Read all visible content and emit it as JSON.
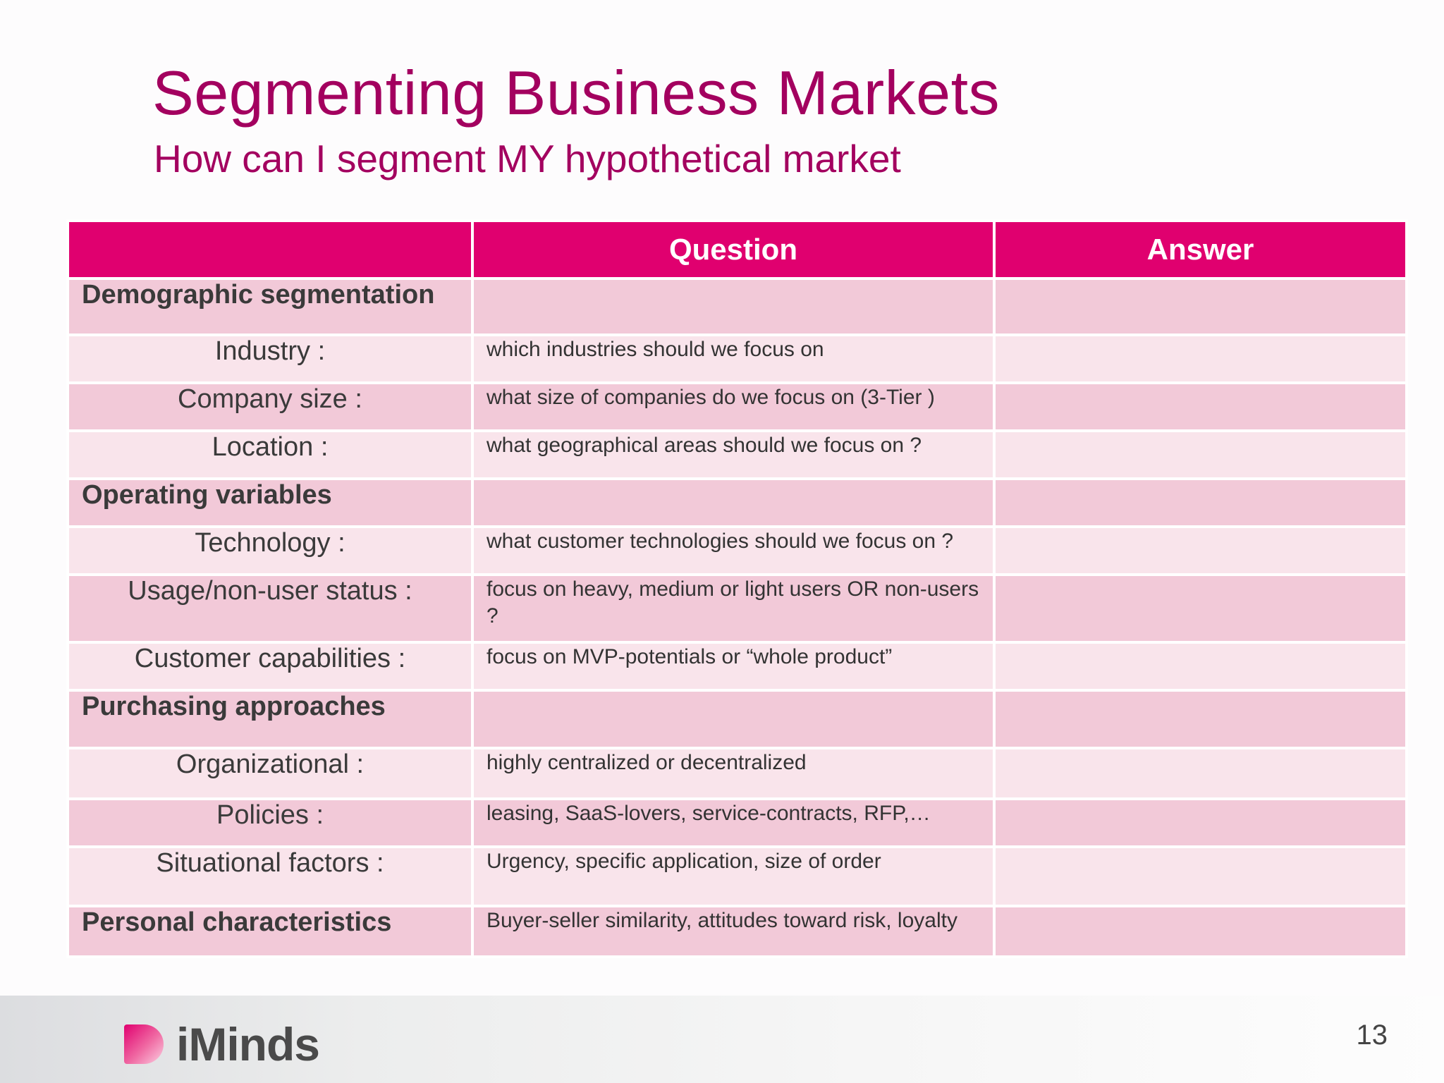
{
  "slide": {
    "title": "Segmenting Business Markets",
    "subtitle": "How can I segment MY hypothetical market",
    "page_number": "13"
  },
  "table": {
    "headers": [
      "",
      "Question",
      "Answer"
    ],
    "rows": [
      {
        "label": "Demographic segmentation",
        "question": "",
        "answer": ""
      },
      {
        "label": "Industry :",
        "question": "which industries should we focus on",
        "answer": ""
      },
      {
        "label": "Company size :",
        "question": "what size of companies do we focus on (3-Tier )",
        "answer": ""
      },
      {
        "label": "Location :",
        "question": "what geographical areas should we focus on ?",
        "answer": ""
      },
      {
        "label": "Operating variables",
        "question": "",
        "answer": ""
      },
      {
        "label": "Technology :",
        "question": "what customer technologies should we focus on ?",
        "answer": ""
      },
      {
        "label": "Usage/non-user status :",
        "question": "focus on heavy, medium or light users OR non-users ?",
        "answer": ""
      },
      {
        "label": "Customer capabilities :",
        "question": "focus on MVP-potentials or “whole product”",
        "answer": ""
      },
      {
        "label": "Purchasing approaches",
        "question": "",
        "answer": ""
      },
      {
        "label": "Organizational :",
        "question": "highly centralized or decentralized",
        "answer": ""
      },
      {
        "label": "Policies :",
        "question": "leasing, SaaS-lovers, service-contracts, RFP,…",
        "answer": ""
      },
      {
        "label": "Situational factors :",
        "question": "Urgency, specific application, size of order",
        "answer": ""
      },
      {
        "label": "Personal characteristics",
        "question": "Buyer-seller similarity, attitudes toward risk, loyalty",
        "answer": ""
      }
    ]
  },
  "footer": {
    "logo_text": "iMinds"
  },
  "colors": {
    "title": "#a3005f",
    "header_bg": "#e0006f",
    "row_dark": "#f2c9d8",
    "row_light": "#f9e4eb"
  }
}
